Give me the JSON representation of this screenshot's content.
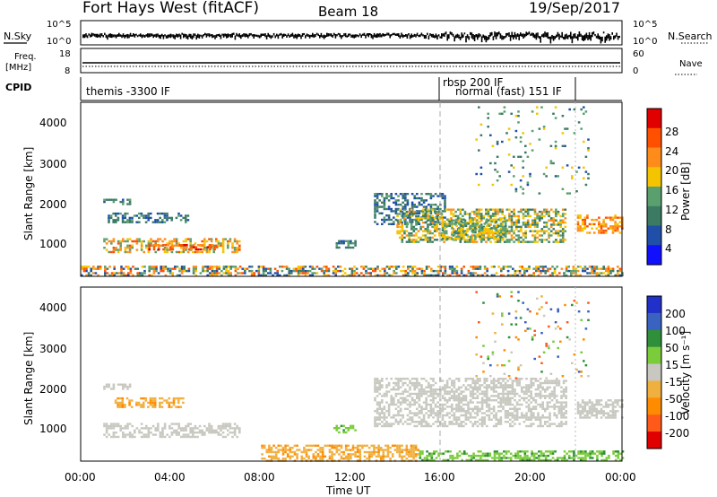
{
  "header": {
    "station": "Fort Hays West (fitACF)",
    "beam": "Beam 18",
    "date": "19/Sep/2017"
  },
  "side_labels": {
    "nsky": "N.Sky",
    "nsearch": "N.Search",
    "freq": "Freq.",
    "freq_unit": "[MHz]",
    "nave": "Nave",
    "cpid": "CPID"
  },
  "noise_panel": {
    "left_ticks": [
      "10^5",
      "10^0"
    ],
    "right_ticks": [
      "10^5",
      "10^0"
    ]
  },
  "freq_panel": {
    "left_ticks": [
      "18",
      "8"
    ],
    "right_ticks": [
      "60",
      "0"
    ]
  },
  "cpid_panel": {
    "modes": [
      "themis -3300 IF",
      "rbsp 200 IF",
      "normal (fast) 151 IF"
    ]
  },
  "power_colorbar": {
    "title": "Power [dB]",
    "ticks": [
      "28",
      "24",
      "20",
      "16",
      "12",
      "8",
      "4"
    ],
    "colors": [
      "#e00000",
      "#ff5000",
      "#ff8c1a",
      "#f5c400",
      "#5aa06e",
      "#3c7a64",
      "#1f4fa8",
      "#1010ff"
    ]
  },
  "velocity_colorbar": {
    "title": "Velocity [m s⁻¹]",
    "ticks": [
      "200",
      "100",
      "50",
      "15",
      "-15",
      "-50",
      "-100",
      "-200"
    ],
    "colors": [
      "#2030c8",
      "#3a62c0",
      "#2f8f3a",
      "#7acc3a",
      "#c8c8c0",
      "#f0b040",
      "#ff8c00",
      "#ff5a1a",
      "#e00000"
    ]
  },
  "axes": {
    "ylabel": "Slant Range [km]",
    "xlabel": "Time UT",
    "y_ticks": [
      "4000",
      "3000",
      "2000",
      "1000"
    ],
    "x_ticks": [
      "00:00",
      "04:00",
      "08:00",
      "12:00",
      "16:00",
      "20:00",
      "00:00"
    ]
  },
  "chart_data": [
    {
      "type": "heatmap",
      "name": "power",
      "xlabel": "Time UT",
      "ylabel": "Slant Range [km]",
      "xlim": [
        0,
        24
      ],
      "ylim": [
        180,
        4600
      ],
      "cbar_label": "Power [dB]",
      "cbar_range": [
        0,
        32
      ],
      "blobs": [
        {
          "t": [
            1.0,
            2.2
          ],
          "r": [
            2000,
            2150
          ],
          "p": [
            6,
            14
          ]
        },
        {
          "t": [
            1.2,
            4.8
          ],
          "r": [
            1580,
            1800
          ],
          "p": [
            5,
            13
          ]
        },
        {
          "t": [
            1.0,
            7.0
          ],
          "r": [
            800,
            1150
          ],
          "p": [
            12,
            26
          ]
        },
        {
          "t": [
            3.0,
            6.0
          ],
          "r": [
            850,
            1000
          ],
          "p": [
            20,
            30
          ]
        },
        {
          "t": [
            11.2,
            12.2
          ],
          "r": [
            900,
            1100
          ],
          "p": [
            6,
            14
          ]
        },
        {
          "t": [
            13.0,
            16.2
          ],
          "r": [
            1500,
            2300
          ],
          "p": [
            5,
            13
          ]
        },
        {
          "t": [
            14.0,
            21.5
          ],
          "r": [
            1050,
            1900
          ],
          "p": [
            8,
            22
          ]
        },
        {
          "t": [
            16.0,
            18.8
          ],
          "r": [
            1150,
            1650
          ],
          "p": [
            10,
            20
          ]
        },
        {
          "t": [
            22.0,
            24.0
          ],
          "r": [
            1300,
            1750
          ],
          "p": [
            16,
            26
          ]
        },
        {
          "t": [
            0.0,
            24.0
          ],
          "r": [
            180,
            450
          ],
          "p": [
            4,
            28
          ]
        },
        {
          "t": [
            17.5,
            22.5
          ],
          "r": [
            2300,
            4500
          ],
          "p": [
            6,
            18
          ]
        }
      ]
    },
    {
      "type": "heatmap",
      "name": "velocity",
      "xlabel": "Time UT",
      "ylabel": "Slant Range [km]",
      "xlim": [
        0,
        24
      ],
      "ylim": [
        180,
        4600
      ],
      "cbar_label": "Velocity [m s⁻¹]",
      "cbar_range": [
        -250,
        250
      ],
      "blobs": [
        {
          "t": [
            1.0,
            2.2
          ],
          "r": [
            2000,
            2150
          ],
          "v": [
            -10,
            10
          ]
        },
        {
          "t": [
            1.5,
            4.5
          ],
          "r": [
            1580,
            1800
          ],
          "v": [
            -60,
            -20
          ]
        },
        {
          "t": [
            1.0,
            7.0
          ],
          "r": [
            800,
            1150
          ],
          "v": [
            -12,
            12
          ]
        },
        {
          "t": [
            11.2,
            12.2
          ],
          "r": [
            900,
            1100
          ],
          "v": [
            20,
            60
          ]
        },
        {
          "t": [
            13.0,
            21.5
          ],
          "r": [
            1050,
            2300
          ],
          "v": [
            -14,
            14
          ]
        },
        {
          "t": [
            22.0,
            24.0
          ],
          "r": [
            1300,
            1750
          ],
          "v": [
            -14,
            14
          ]
        },
        {
          "t": [
            8.0,
            15.0
          ],
          "r": [
            180,
            600
          ],
          "v": [
            -60,
            -20
          ]
        },
        {
          "t": [
            15.0,
            24.0
          ],
          "r": [
            180,
            450
          ],
          "v": [
            15,
            60
          ]
        },
        {
          "t": [
            17.5,
            22.5
          ],
          "r": [
            2300,
            4500
          ],
          "v": [
            -150,
            150
          ]
        }
      ]
    }
  ]
}
